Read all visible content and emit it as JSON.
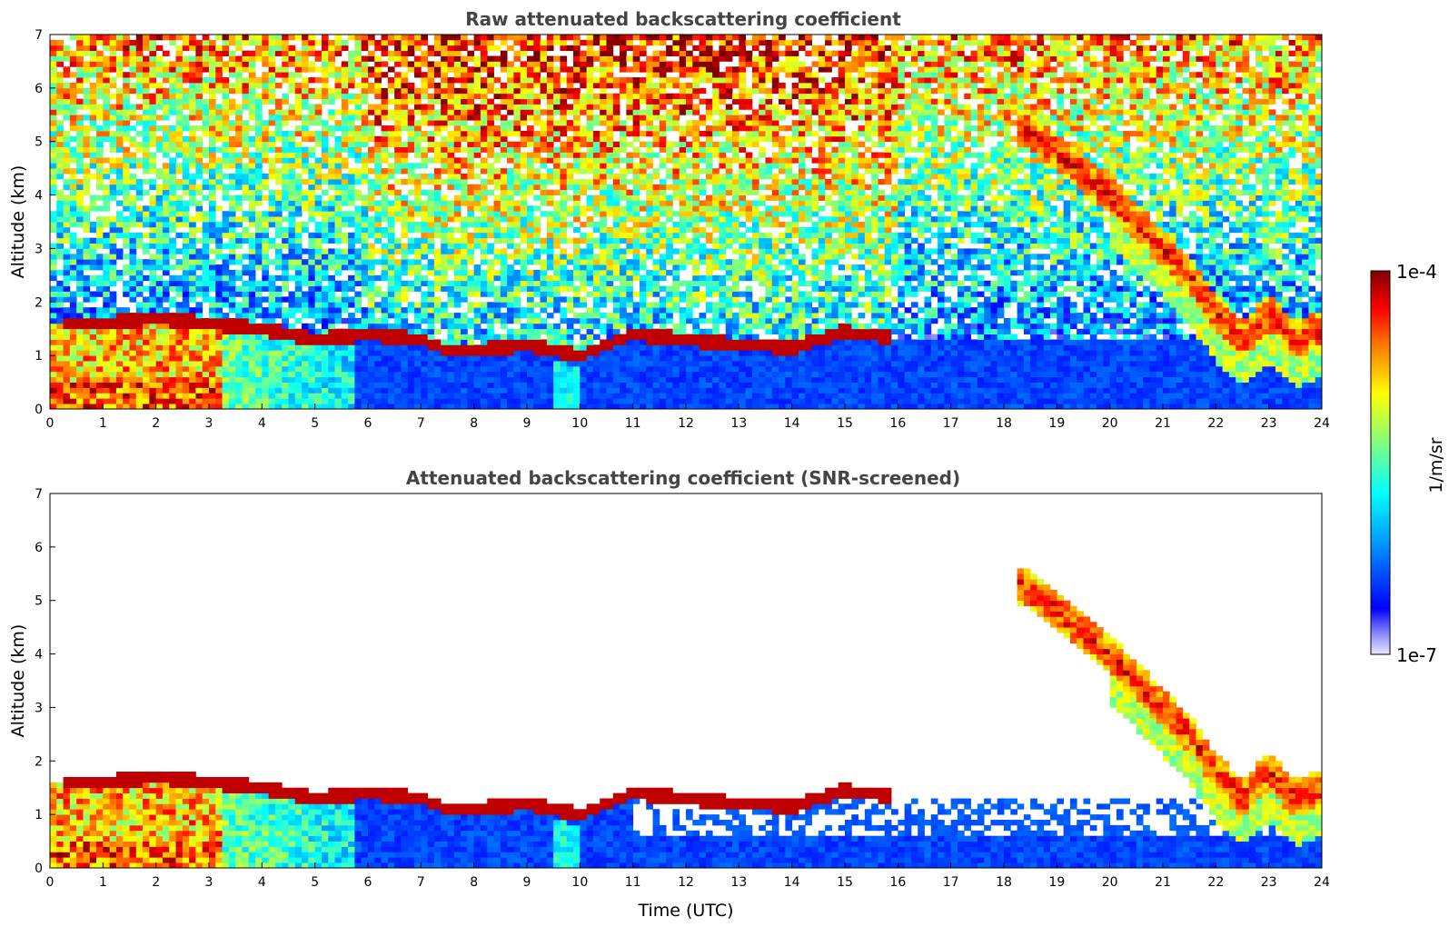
{
  "chart_data": [
    {
      "type": "heatmap",
      "title": "Raw attenuated backscattering coefficient",
      "xlabel": "",
      "ylabel": "Altitude (km)",
      "xlim": [
        0,
        24
      ],
      "ylim": [
        0,
        7
      ],
      "xticks": [
        "0",
        "1",
        "2",
        "3",
        "4",
        "5",
        "6",
        "7",
        "8",
        "9",
        "10",
        "11",
        "12",
        "13",
        "14",
        "15",
        "16",
        "17",
        "18",
        "19",
        "20",
        "21",
        "22",
        "23",
        "24"
      ],
      "yticks": [
        "0",
        "1",
        "2",
        "3",
        "4",
        "5",
        "6",
        "7"
      ],
      "colorscale": "jet",
      "log_scale": true,
      "features": {
        "boundary_layer_top_km": [
          {
            "t": 0,
            "h": 1.6
          },
          {
            "t": 1,
            "h": 1.6
          },
          {
            "t": 2,
            "h": 1.7
          },
          {
            "t": 3,
            "h": 1.6
          },
          {
            "t": 4,
            "h": 1.5
          },
          {
            "t": 5,
            "h": 1.3
          },
          {
            "t": 6,
            "h": 1.4
          },
          {
            "t": 7,
            "h": 1.3
          },
          {
            "t": 7.5,
            "h": 1.1
          },
          {
            "t": 8,
            "h": 1.1
          },
          {
            "t": 9,
            "h": 1.2
          },
          {
            "t": 10,
            "h": 1.0
          },
          {
            "t": 11,
            "h": 1.4
          },
          {
            "t": 12,
            "h": 1.3
          },
          {
            "t": 13,
            "h": 1.2
          },
          {
            "t": 14,
            "h": 1.15
          },
          {
            "t": 15,
            "h": 1.45
          },
          {
            "t": 15.8,
            "h": 1.35
          }
        ],
        "cloud_layer_km": [
          {
            "t": 18.3,
            "h": 5.3
          },
          {
            "t": 19,
            "h": 4.8
          },
          {
            "t": 20,
            "h": 4.0
          },
          {
            "t": 20.5,
            "h": 3.5
          },
          {
            "t": 21,
            "h": 3.0
          },
          {
            "t": 21.5,
            "h": 2.5
          },
          {
            "t": 22,
            "h": 1.8
          },
          {
            "t": 22.5,
            "h": 1.3
          },
          {
            "t": 23,
            "h": 1.8
          },
          {
            "t": 23.5,
            "h": 1.3
          },
          {
            "t": 24,
            "h": 1.5
          }
        ]
      }
    },
    {
      "type": "heatmap",
      "title": "Attenuated backscattering coefficient (SNR-screened)",
      "xlabel": "Time (UTC)",
      "ylabel": "Altitude (km)",
      "xlim": [
        0,
        24
      ],
      "ylim": [
        0,
        7
      ],
      "xticks": [
        "0",
        "1",
        "2",
        "3",
        "4",
        "5",
        "6",
        "7",
        "8",
        "9",
        "10",
        "11",
        "12",
        "13",
        "14",
        "15",
        "16",
        "17",
        "18",
        "19",
        "20",
        "21",
        "22",
        "23",
        "24"
      ],
      "yticks": [
        "0",
        "1",
        "2",
        "3",
        "4",
        "5",
        "6",
        "7"
      ],
      "colorscale": "jet",
      "log_scale": true,
      "screened": true
    }
  ],
  "colorbar": {
    "label": "1/m/sr",
    "max_label": "1e-4",
    "min_label": "1e-7",
    "range": [
      1e-07,
      0.0001
    ]
  },
  "colors": {
    "axis": "#000000",
    "title": "#444444",
    "background": "#ffffff"
  }
}
